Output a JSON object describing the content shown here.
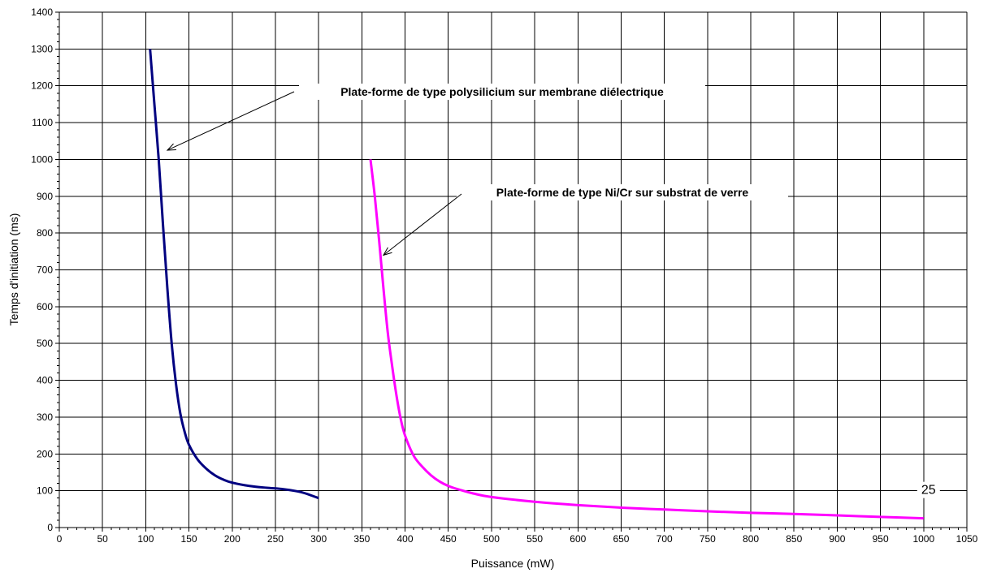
{
  "chart_data": {
    "type": "line",
    "xlabel": "Puissance  (mW)",
    "ylabel": "Temps d'initiation (ms)",
    "xlim": [
      0,
      1050
    ],
    "ylim": [
      0,
      1400
    ],
    "x_ticks": [
      0,
      50,
      100,
      150,
      200,
      250,
      300,
      350,
      400,
      450,
      500,
      550,
      600,
      650,
      700,
      750,
      800,
      850,
      900,
      950,
      1000,
      1050
    ],
    "y_ticks": [
      0,
      100,
      200,
      300,
      400,
      500,
      600,
      700,
      800,
      900,
      1000,
      1100,
      1200,
      1300,
      1400
    ],
    "grid": true,
    "series": [
      {
        "color": "#000080",
        "points": [
          [
            105,
            1300
          ],
          [
            110,
            1150
          ],
          [
            115,
            1000
          ],
          [
            120,
            820
          ],
          [
            125,
            650
          ],
          [
            130,
            500
          ],
          [
            135,
            390
          ],
          [
            140,
            310
          ],
          [
            145,
            260
          ],
          [
            150,
            225
          ],
          [
            160,
            185
          ],
          [
            170,
            160
          ],
          [
            180,
            142
          ],
          [
            190,
            130
          ],
          [
            200,
            122
          ],
          [
            220,
            113
          ],
          [
            240,
            108
          ],
          [
            260,
            104
          ],
          [
            280,
            96
          ],
          [
            300,
            80
          ]
        ]
      },
      {
        "color": "#ff00ff",
        "points": [
          [
            360,
            1000
          ],
          [
            365,
            900
          ],
          [
            370,
            780
          ],
          [
            375,
            650
          ],
          [
            380,
            530
          ],
          [
            385,
            440
          ],
          [
            390,
            360
          ],
          [
            395,
            295
          ],
          [
            400,
            250
          ],
          [
            410,
            195
          ],
          [
            420,
            165
          ],
          [
            430,
            142
          ],
          [
            440,
            125
          ],
          [
            450,
            113
          ],
          [
            460,
            105
          ],
          [
            480,
            92
          ],
          [
            500,
            83
          ],
          [
            550,
            70
          ],
          [
            600,
            61
          ],
          [
            650,
            54
          ],
          [
            700,
            49
          ],
          [
            750,
            44
          ],
          [
            800,
            40
          ],
          [
            850,
            37
          ],
          [
            900,
            33
          ],
          [
            950,
            29
          ],
          [
            1000,
            25
          ]
        ]
      }
    ],
    "annotations": [
      {
        "text": "Plate-forme de type polysilicium sur membrane diélectrique",
        "arrow_to": [
          125,
          1025
        ]
      },
      {
        "text": "Plate-forme de type Ni/Cr sur substrat de verre",
        "arrow_to": [
          375,
          740
        ]
      }
    ],
    "data_labels": [
      {
        "text": "25",
        "x": 1000,
        "y": 25
      }
    ]
  }
}
